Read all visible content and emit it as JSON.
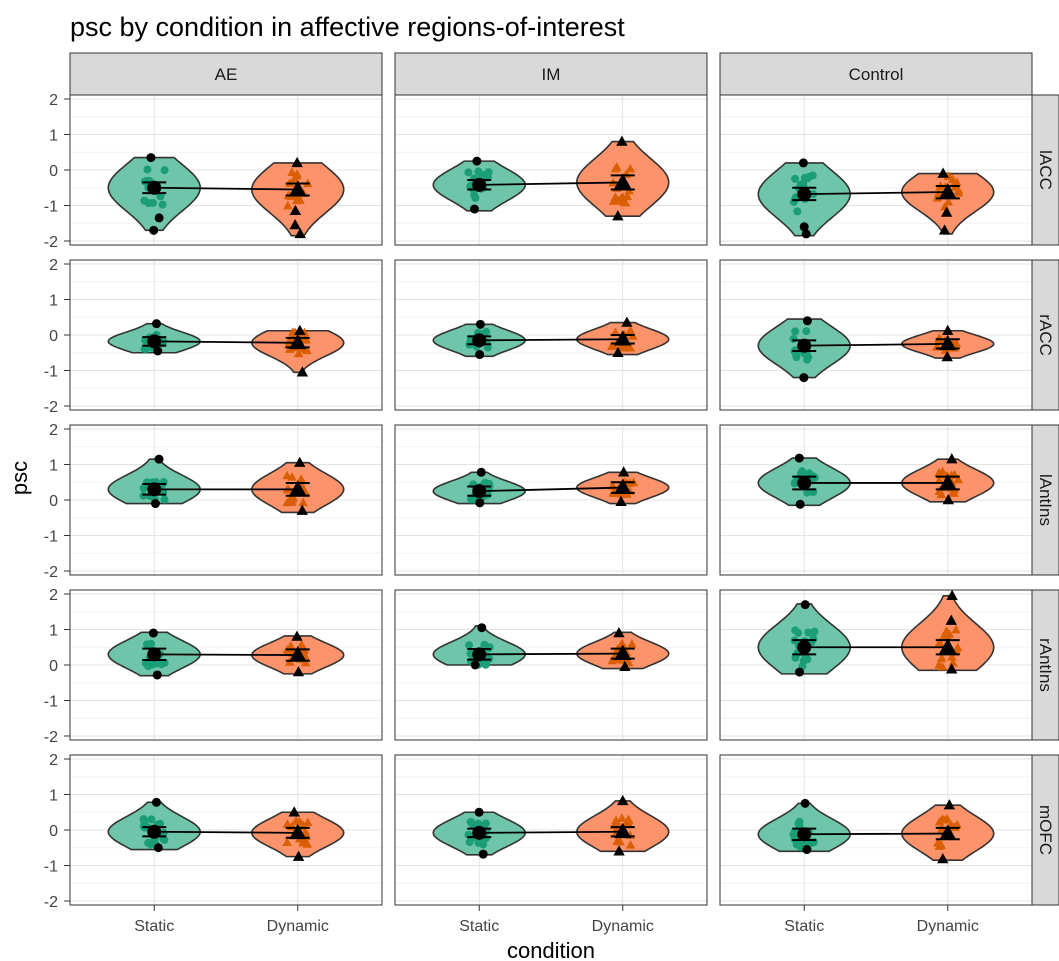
{
  "chart_data": {
    "type": "violin",
    "title": "psc by condition in affective regions-of-interest",
    "xlabel": "condition",
    "ylabel": "psc",
    "ylim": [
      -2,
      2
    ],
    "yticks": [
      2,
      1,
      0,
      -1,
      -2
    ],
    "categories": [
      "Static",
      "Dynamic"
    ],
    "columns": [
      "AE",
      "IM",
      "Control"
    ],
    "rows": [
      "lACC",
      "rACC",
      "lAntIns",
      "rAntIns",
      "mOFC"
    ],
    "grid": true,
    "colors": {
      "Static": "#66c2a5",
      "Dynamic": "#fc8d62",
      "StaticDark": "#1b9e77",
      "DynamicDark": "#d95f02"
    },
    "panels": [
      {
        "row": "lACC",
        "col": "AE",
        "Static": {
          "mean": -0.5,
          "ci": [
            -0.65,
            -0.35
          ],
          "min": -1.7,
          "max": 0.35,
          "outliers": [
            0.35,
            -1.35,
            -1.7
          ]
        },
        "Dynamic": {
          "mean": -0.55,
          "ci": [
            -0.72,
            -0.38
          ],
          "min": -1.85,
          "max": 0.2,
          "outliers": [
            0.2,
            -1.15,
            -1.55,
            -1.8
          ]
        }
      },
      {
        "row": "lACC",
        "col": "IM",
        "Static": {
          "mean": -0.42,
          "ci": [
            -0.55,
            -0.28
          ],
          "min": -1.15,
          "max": 0.25,
          "outliers": [
            0.25,
            -1.1
          ]
        },
        "Dynamic": {
          "mean": -0.35,
          "ci": [
            -0.55,
            -0.15
          ],
          "min": -1.3,
          "max": 0.8,
          "outliers": [
            0.8,
            -1.3
          ]
        }
      },
      {
        "row": "lACC",
        "col": "Control",
        "Static": {
          "mean": -0.68,
          "ci": [
            -0.85,
            -0.5
          ],
          "min": -1.85,
          "max": 0.2,
          "outliers": [
            0.2,
            -1.6,
            -1.8
          ]
        },
        "Dynamic": {
          "mean": -0.62,
          "ci": [
            -0.8,
            -0.45
          ],
          "min": -1.8,
          "max": -0.1,
          "outliers": [
            -0.1,
            -1.2,
            -1.7
          ]
        }
      },
      {
        "row": "rACC",
        "col": "AE",
        "Static": {
          "mean": -0.18,
          "ci": [
            -0.3,
            -0.06
          ],
          "min": -0.5,
          "max": 0.32,
          "outliers": [
            0.32,
            -0.45
          ]
        },
        "Dynamic": {
          "mean": -0.22,
          "ci": [
            -0.35,
            -0.08
          ],
          "min": -1.05,
          "max": 0.12,
          "outliers": [
            0.12,
            -1.05
          ]
        }
      },
      {
        "row": "rACC",
        "col": "IM",
        "Static": {
          "mean": -0.15,
          "ci": [
            -0.26,
            -0.04
          ],
          "min": -0.6,
          "max": 0.3,
          "outliers": [
            0.3,
            -0.55
          ]
        },
        "Dynamic": {
          "mean": -0.12,
          "ci": [
            -0.24,
            0.0
          ],
          "min": -0.55,
          "max": 0.35,
          "outliers": [
            0.35,
            -0.5
          ]
        }
      },
      {
        "row": "rACC",
        "col": "Control",
        "Static": {
          "mean": -0.3,
          "ci": [
            -0.45,
            -0.15
          ],
          "min": -1.2,
          "max": 0.45,
          "outliers": [
            0.4,
            -1.2
          ]
        },
        "Dynamic": {
          "mean": -0.25,
          "ci": [
            -0.38,
            -0.12
          ],
          "min": -0.65,
          "max": 0.12,
          "outliers": [
            0.12,
            -0.62
          ]
        }
      },
      {
        "row": "lAntIns",
        "col": "AE",
        "Static": {
          "mean": 0.3,
          "ci": [
            0.15,
            0.45
          ],
          "min": -0.1,
          "max": 1.15,
          "outliers": [
            1.15,
            -0.1
          ]
        },
        "Dynamic": {
          "mean": 0.3,
          "ci": [
            0.12,
            0.48
          ],
          "min": -0.35,
          "max": 1.05,
          "outliers": [
            1.05,
            -0.3
          ]
        }
      },
      {
        "row": "lAntIns",
        "col": "IM",
        "Static": {
          "mean": 0.25,
          "ci": [
            0.12,
            0.38
          ],
          "min": -0.1,
          "max": 0.78,
          "outliers": [
            0.78,
            -0.08
          ]
        },
        "Dynamic": {
          "mean": 0.35,
          "ci": [
            0.2,
            0.5
          ],
          "min": -0.1,
          "max": 0.78,
          "outliers": [
            0.78,
            -0.05
          ]
        }
      },
      {
        "row": "lAntIns",
        "col": "Control",
        "Static": {
          "mean": 0.48,
          "ci": [
            0.3,
            0.66
          ],
          "min": -0.15,
          "max": 1.18,
          "outliers": [
            1.18,
            -0.12
          ]
        },
        "Dynamic": {
          "mean": 0.48,
          "ci": [
            0.3,
            0.66
          ],
          "min": -0.05,
          "max": 1.15,
          "outliers": [
            1.15,
            0.0
          ]
        }
      },
      {
        "row": "rAntIns",
        "col": "AE",
        "Static": {
          "mean": 0.3,
          "ci": [
            0.14,
            0.46
          ],
          "min": -0.3,
          "max": 0.92,
          "outliers": [
            0.9,
            -0.28
          ]
        },
        "Dynamic": {
          "mean": 0.28,
          "ci": [
            0.12,
            0.44
          ],
          "min": -0.25,
          "max": 0.82,
          "outliers": [
            0.8,
            -0.2
          ]
        }
      },
      {
        "row": "rAntIns",
        "col": "IM",
        "Static": {
          "mean": 0.3,
          "ci": [
            0.15,
            0.45
          ],
          "min": 0.0,
          "max": 1.1,
          "outliers": [
            1.05,
            0.0
          ]
        },
        "Dynamic": {
          "mean": 0.32,
          "ci": [
            0.18,
            0.46
          ],
          "min": -0.1,
          "max": 0.92,
          "outliers": [
            0.9,
            -0.05
          ]
        }
      },
      {
        "row": "rAntIns",
        "col": "Control",
        "Static": {
          "mean": 0.5,
          "ci": [
            0.3,
            0.7
          ],
          "min": -0.25,
          "max": 1.72,
          "outliers": [
            1.7,
            -0.2
          ]
        },
        "Dynamic": {
          "mean": 0.5,
          "ci": [
            0.3,
            0.7
          ],
          "min": -0.15,
          "max": 1.95,
          "outliers": [
            1.95,
            1.25,
            -0.12
          ]
        }
      },
      {
        "row": "mOFC",
        "col": "AE",
        "Static": {
          "mean": -0.05,
          "ci": [
            -0.18,
            0.08
          ],
          "min": -0.55,
          "max": 0.78,
          "outliers": [
            0.78,
            -0.5
          ]
        },
        "Dynamic": {
          "mean": -0.08,
          "ci": [
            -0.22,
            0.06
          ],
          "min": -0.75,
          "max": 0.5,
          "outliers": [
            0.5,
            -0.75
          ]
        }
      },
      {
        "row": "mOFC",
        "col": "IM",
        "Static": {
          "mean": -0.08,
          "ci": [
            -0.2,
            0.04
          ],
          "min": -0.7,
          "max": 0.5,
          "outliers": [
            0.5,
            -0.68
          ]
        },
        "Dynamic": {
          "mean": -0.05,
          "ci": [
            -0.18,
            0.08
          ],
          "min": -0.6,
          "max": 0.82,
          "outliers": [
            0.82,
            -0.6
          ]
        }
      },
      {
        "row": "mOFC",
        "col": "Control",
        "Static": {
          "mean": -0.12,
          "ci": [
            -0.28,
            0.04
          ],
          "min": -0.6,
          "max": 0.75,
          "outliers": [
            0.75,
            -0.55
          ]
        },
        "Dynamic": {
          "mean": -0.1,
          "ci": [
            -0.26,
            0.06
          ],
          "min": -0.85,
          "max": 0.7,
          "outliers": [
            0.7,
            -0.82
          ]
        }
      }
    ]
  }
}
